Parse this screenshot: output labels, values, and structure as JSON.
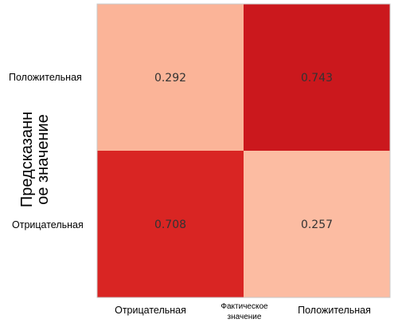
{
  "chart_data": {
    "type": "heatmap",
    "title": "",
    "x_categories": [
      "Отрицательная",
      "Положительная"
    ],
    "y_categories": [
      "Положительная",
      "Отрицательная"
    ],
    "xlabel_lines": [
      "Фактическое",
      "значение"
    ],
    "ylabel_lines": [
      "Предсказанн",
      "ое значение"
    ],
    "values": [
      [
        0.292,
        0.743
      ],
      [
        0.708,
        0.257
      ]
    ],
    "value_labels": [
      [
        "0.292",
        "0.743"
      ],
      [
        "0.708",
        "0.257"
      ]
    ],
    "cell_colors": [
      [
        "#fbb498",
        "#cb181d"
      ],
      [
        "#d92523",
        "#fcbca2"
      ]
    ],
    "colormap": "Reds",
    "frame_color": "#c8c8c8",
    "grid": false,
    "legend": "none"
  }
}
